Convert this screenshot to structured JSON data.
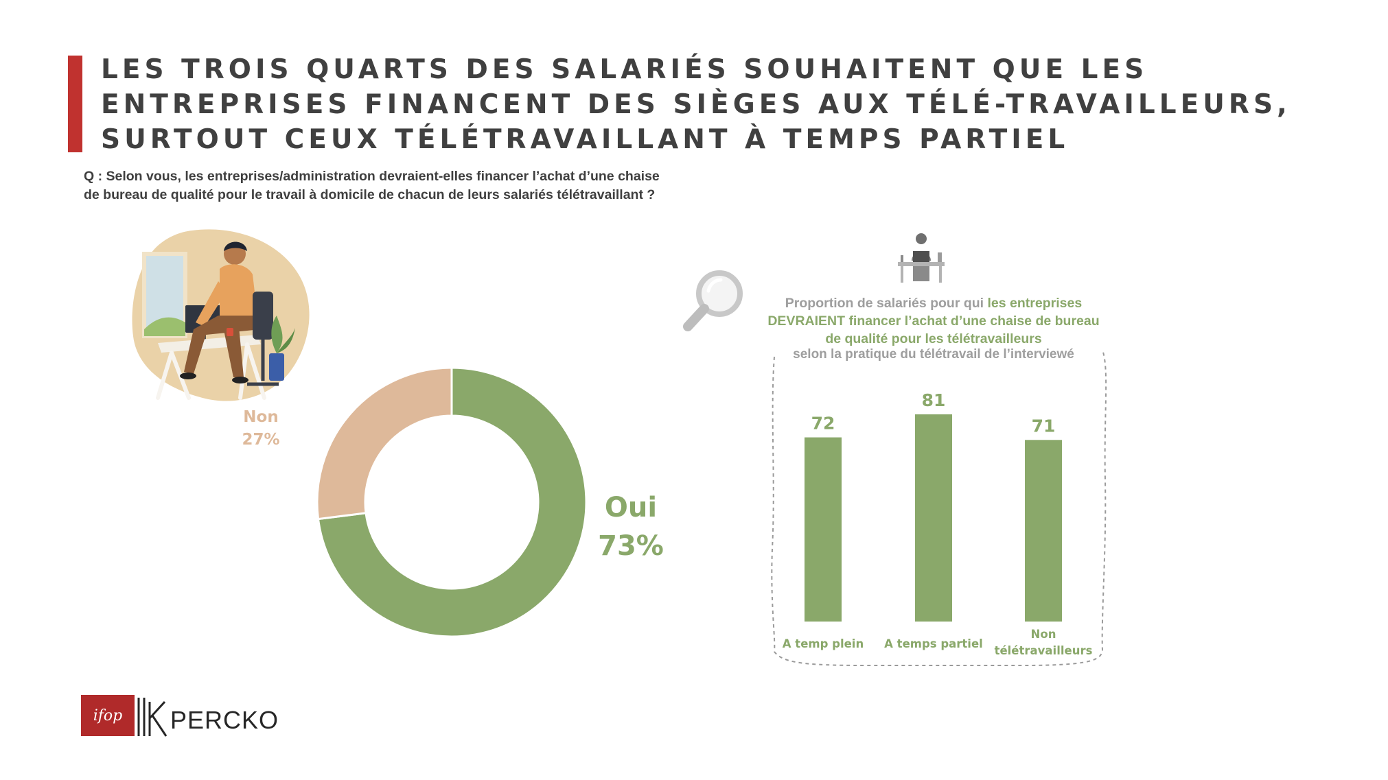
{
  "title": {
    "lines": [
      "LES TROIS QUARTS DES SALARIÉS SOUHAITENT QUE LES",
      "ENTREPRISES FINANCENT DES SIÈGES AUX TÉLÉ-TRAVAILLEURS,",
      "SURTOUT CEUX TÉLÉTRAVAILLANT À TEMPS PARTIEL"
    ]
  },
  "question": {
    "lines": [
      "Q : Selon vous, les entreprises/administration devraient-elles financer l’achat d’une chaise",
      "de bureau de qualité pour le travail à domicile de chacun de leurs salariés télétravaillant ?"
    ]
  },
  "colors": {
    "accent_red": "#c0322f",
    "green": "#8aa86a",
    "beige": "#deb99a",
    "grey_text": "#9e9e9e"
  },
  "chart_data": [
    {
      "type": "pie",
      "style": "donut",
      "slices": [
        {
          "label": "Oui",
          "value": 73,
          "value_label": "73%",
          "color": "#8aa86a"
        },
        {
          "label": "Non",
          "value": 27,
          "value_label": "27%",
          "color": "#deb99a"
        }
      ]
    },
    {
      "type": "bar",
      "title_parts": [
        {
          "text": "Proportion de salariés pour qui ",
          "color": "#9e9e9e"
        },
        {
          "text": "les entreprises",
          "color": "#8aa86a"
        }
      ],
      "title_line2": "DEVRAIENT financer l’achat d’une chaise de bureau",
      "title_line3": "de qualité pour les télétravailleurs",
      "subtitle": "selon la pratique du télétravail de l’interviewé",
      "categories": [
        "A temp plein",
        "A temps partiel",
        "Non télétravailleurs"
      ],
      "category_lines": [
        [
          "A temp plein"
        ],
        [
          "A temps partiel"
        ],
        [
          "Non",
          "télétravailleurs"
        ]
      ],
      "values": [
        72,
        81,
        71
      ],
      "ylim": [
        0,
        81
      ],
      "grid": false,
      "bar_color": "#8aa86a"
    }
  ],
  "icons": {
    "illustration": "person-working-at-desk-illustration",
    "magnifier": "magnifying-glass-icon",
    "person": "person-at-desk-icon"
  },
  "logos": {
    "ifop": "ifop",
    "percko": "PERCKO"
  }
}
